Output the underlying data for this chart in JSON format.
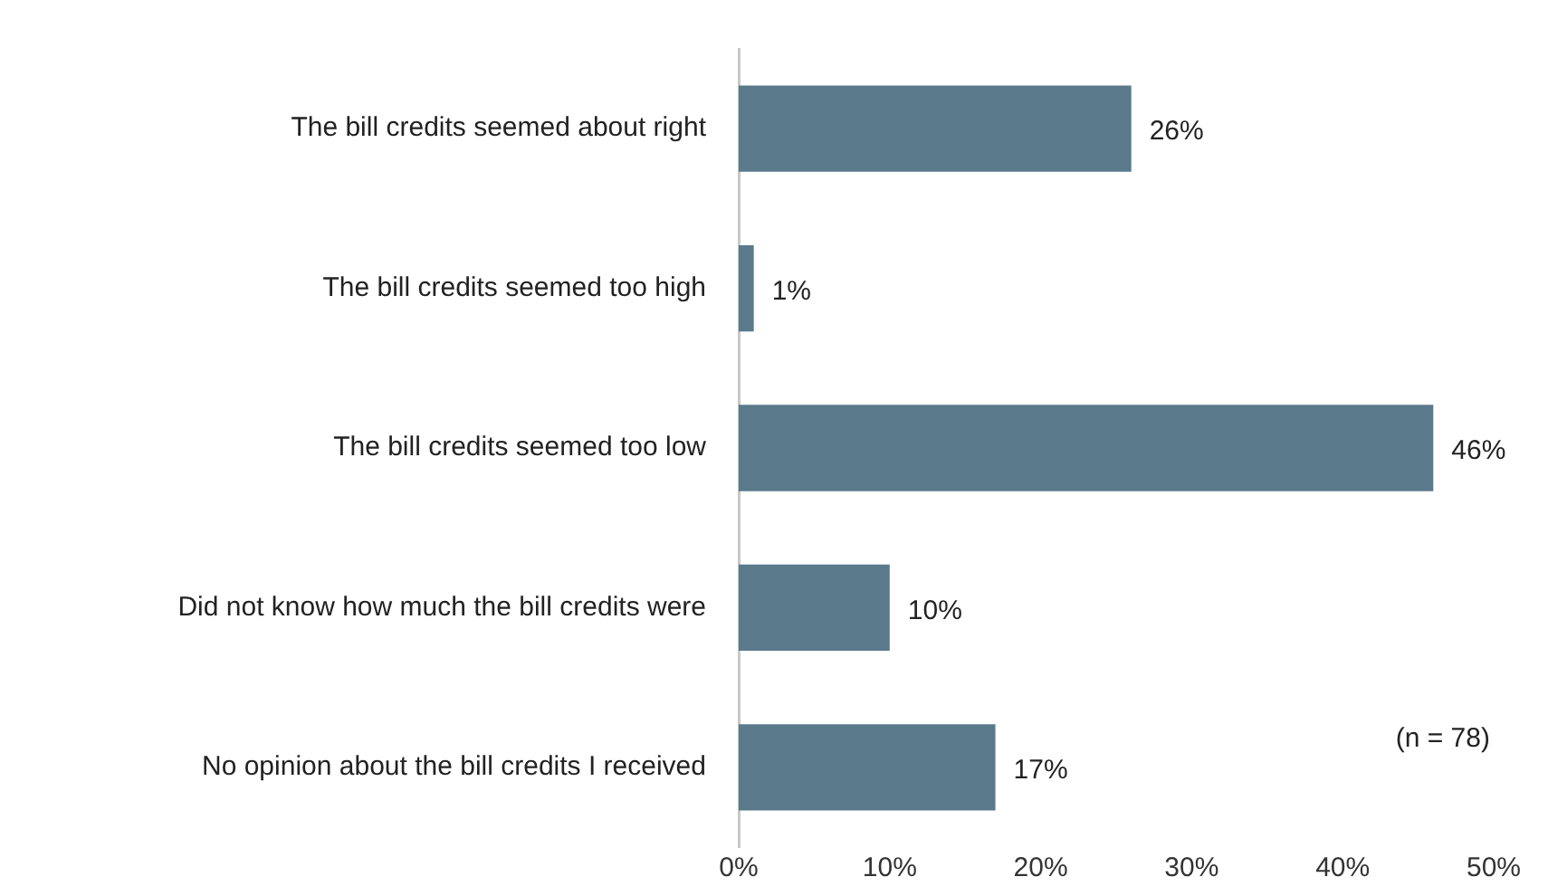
{
  "chart_data": {
    "type": "bar",
    "orientation": "horizontal",
    "categories": [
      "The bill credits seemed about right",
      "The bill credits seemed too high",
      "The bill credits seemed too low",
      "Did not know how much the bill credits were",
      "No opinion about the bill credits I received"
    ],
    "values": [
      26,
      1,
      46,
      10,
      17
    ],
    "value_labels": [
      "26%",
      "1%",
      "46%",
      "10%",
      "17%"
    ],
    "color": "#5a7a8c",
    "xlim": [
      0,
      50
    ],
    "xticks": [
      {
        "value": 0,
        "label": "0%"
      },
      {
        "value": 10,
        "label": "10%"
      },
      {
        "value": 20,
        "label": "20%"
      },
      {
        "value": 30,
        "label": "30%"
      },
      {
        "value": 40,
        "label": "40%"
      },
      {
        "value": 50,
        "label": "50%"
      }
    ],
    "grid": false,
    "legend": false,
    "annotations": [
      "(n = 78)"
    ]
  }
}
